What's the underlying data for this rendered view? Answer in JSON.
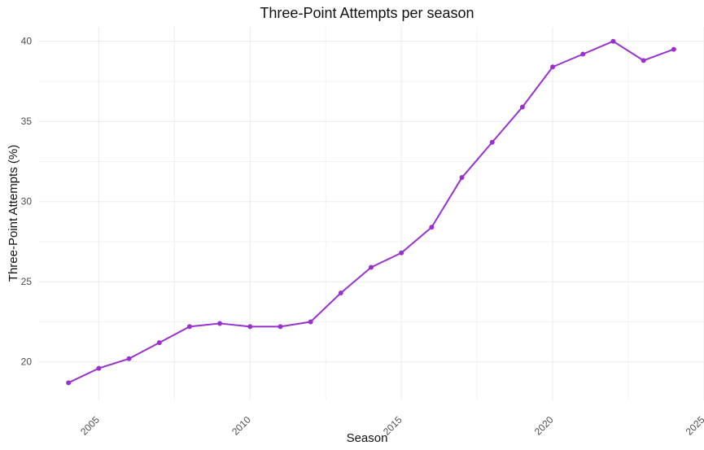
{
  "chart_data": {
    "type": "line",
    "title": "Three-Point Attempts per season",
    "xlabel": "Season",
    "ylabel": "Three-Point Attempts (%)",
    "x": [
      2004,
      2005,
      2006,
      2007,
      2008,
      2009,
      2010,
      2011,
      2012,
      2013,
      2014,
      2015,
      2016,
      2017,
      2018,
      2019,
      2020,
      2021,
      2022,
      2023,
      2024
    ],
    "series": [
      {
        "values": [
          18.7,
          19.6,
          20.2,
          21.2,
          22.2,
          22.4,
          22.2,
          22.2,
          22.5,
          24.3,
          25.9,
          26.8,
          28.4,
          31.5,
          33.7,
          35.9,
          38.4,
          39.2,
          40.0,
          38.8,
          39.5
        ]
      }
    ],
    "xlim": [
      2003,
      2025
    ],
    "ylim": [
      17.6,
      40.9
    ],
    "xticks": [
      2005,
      2010,
      2015,
      2020,
      2025
    ],
    "xtick_labels": [
      "2005",
      "2010",
      "2015",
      "2020",
      "2025"
    ],
    "yticks": [
      20,
      25,
      30,
      35,
      40
    ],
    "ytick_labels": [
      "20",
      "25",
      "30",
      "35",
      "40"
    ],
    "grid": true,
    "colors": {
      "line": "#9932cc",
      "point": "#9932cc",
      "grid": "#ebebeb",
      "text": "#111111",
      "tick": "#4d4d4d"
    }
  }
}
